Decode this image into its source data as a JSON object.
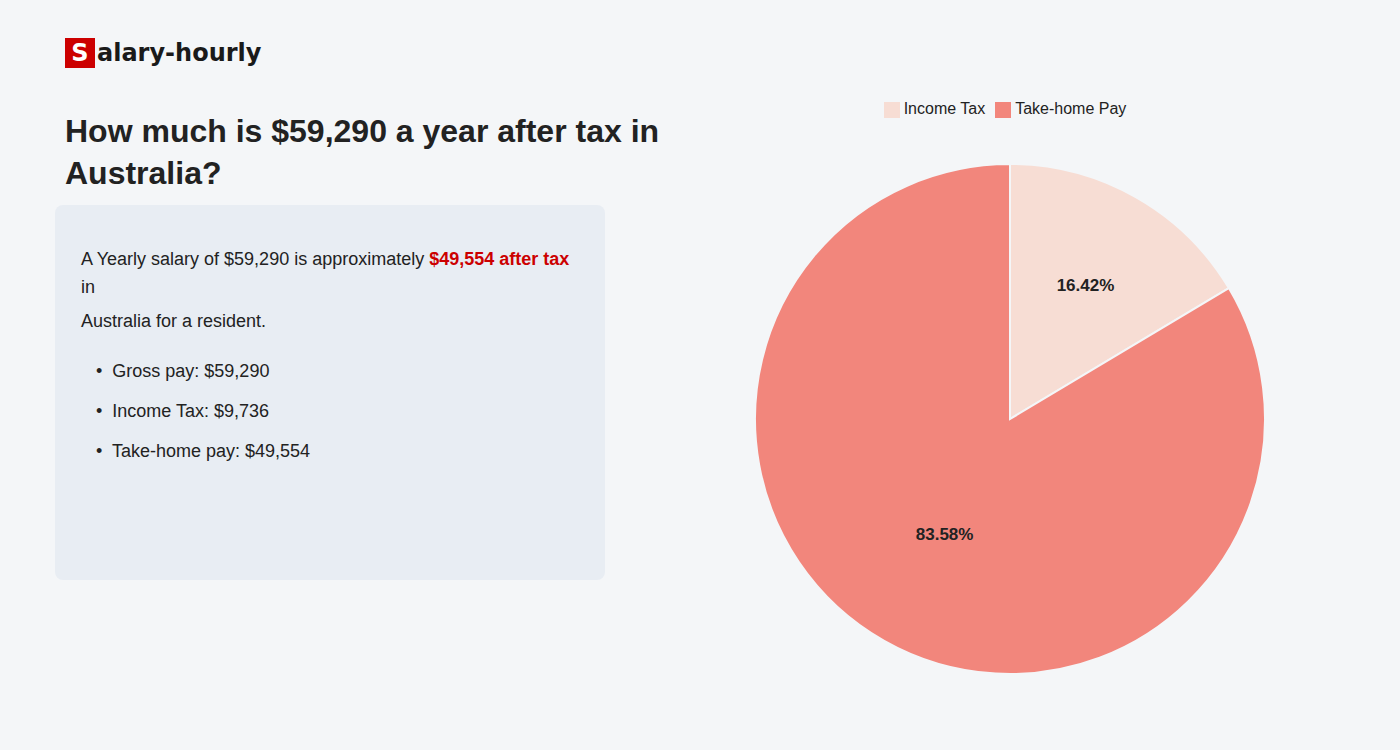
{
  "chart_data": {
    "type": "pie",
    "title": "How much is $59,290 a year after tax in\nAustralia?",
    "categories": [
      "Income Tax",
      "Take-home Pay"
    ],
    "values": [
      16.42,
      83.58
    ],
    "value_labels": [
      "16.42%",
      "83.58%"
    ],
    "colors": [
      "#f7ddd4",
      "#f2867c"
    ],
    "data_labels": true,
    "legend": "top",
    "annotations": [
      [
        {
          "text": "S",
          "color": "#cc0000"
        },
        {
          "text": "alary-hourly"
        }
      ],
      [
        {
          "text": "A Yearly salary of $59,290 is approximately "
        },
        {
          "text": "$49,554 after tax",
          "color": "#cc0000"
        },
        {
          "text": " in"
        }
      ],
      [
        {
          "text": "Australia for a resident."
        }
      ],
      [
        {
          "text": "•  Gross pay: $59,290"
        }
      ],
      [
        {
          "text": "•  Income Tax: $9,736"
        }
      ],
      [
        {
          "text": "•  Take-home pay: $49,554"
        }
      ]
    ]
  }
}
